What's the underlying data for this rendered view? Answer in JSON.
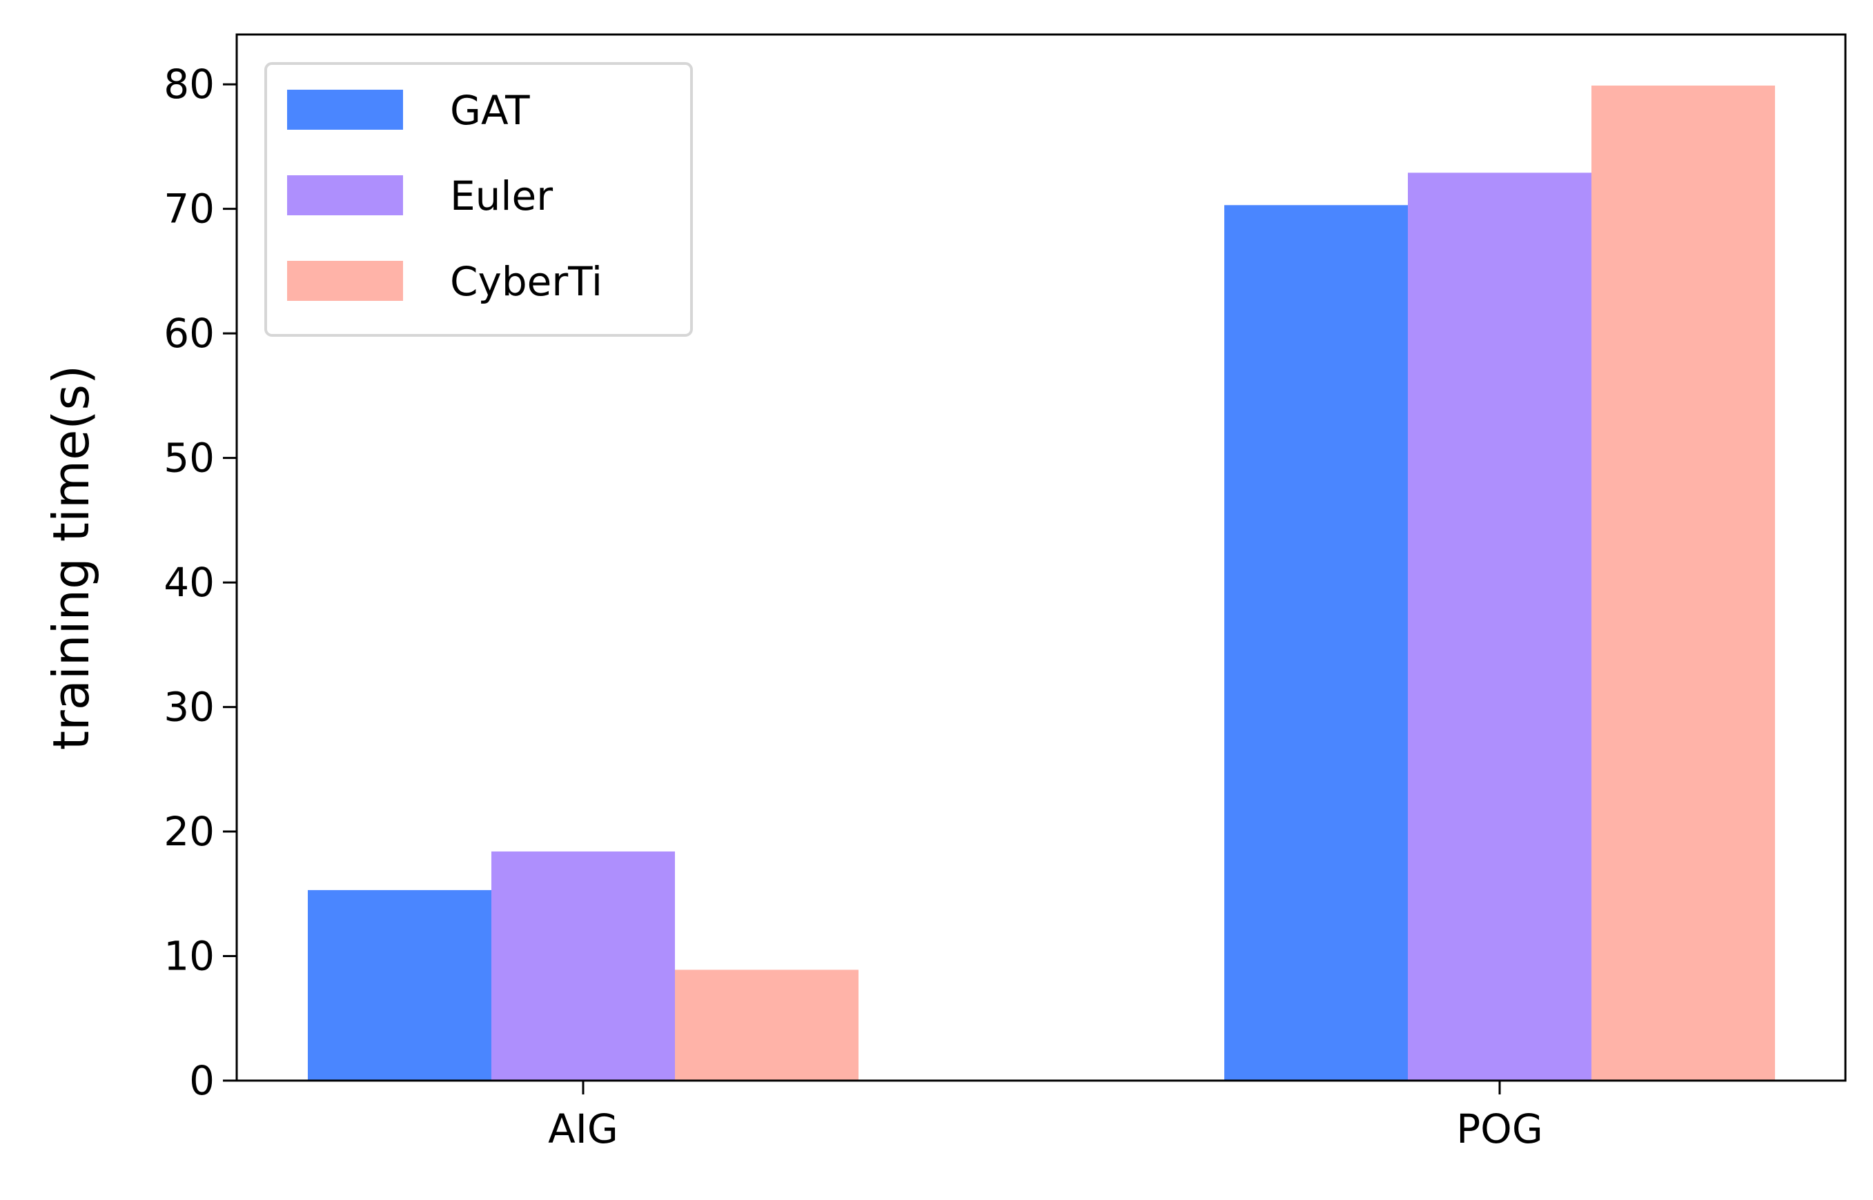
{
  "chart_data": {
    "type": "bar",
    "title": "",
    "xlabel": "",
    "ylabel": "training time(s)",
    "categories": [
      "AIG",
      "POG"
    ],
    "series": [
      {
        "name": "GAT",
        "color": "#4a86ff",
        "values": [
          15.3,
          70.3
        ]
      },
      {
        "name": "Euler",
        "color": "#ae8ffd",
        "values": [
          18.4,
          72.9
        ]
      },
      {
        "name": "CyberTi",
        "color": "#ffb3a8",
        "values": [
          8.9,
          79.9
        ]
      }
    ],
    "ylim": [
      0,
      84
    ],
    "yticks": [
      0,
      10,
      20,
      30,
      40,
      50,
      60,
      70,
      80
    ],
    "grid": false,
    "legend_position": "top-left"
  }
}
